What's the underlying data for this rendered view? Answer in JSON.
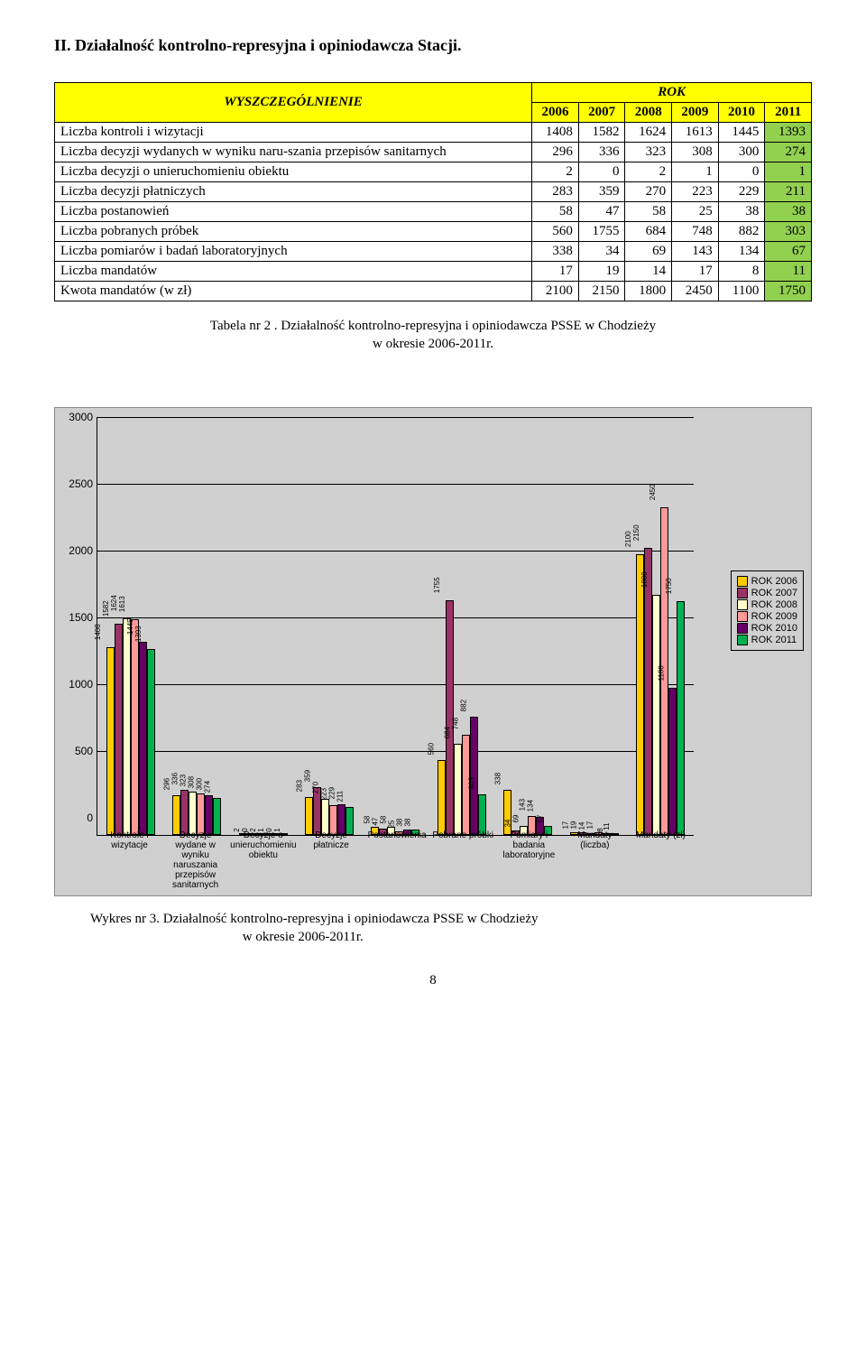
{
  "heading": "II.   Działalność kontrolno-represyjna i opiniodawcza Stacji.",
  "table": {
    "header_left": "WYSZCZEGÓLNIENIE",
    "header_rok": "ROK",
    "years": [
      "2006",
      "2007",
      "2008",
      "2009",
      "2010",
      "2011"
    ],
    "rows": [
      {
        "label": "Liczba kontroli i wizytacji",
        "vals": [
          "1408",
          "1582",
          "1624",
          "1613",
          "1445",
          "1393"
        ],
        "hl": [
          5
        ]
      },
      {
        "label": "Liczba decyzji wydanych w wyniku naru-szania przepisów sanitarnych",
        "vals": [
          "296",
          "336",
          "323",
          "308",
          "300",
          "274"
        ],
        "hl": [
          5
        ]
      },
      {
        "label": "Liczba decyzji o unieruchomieniu obiektu",
        "vals": [
          "2",
          "0",
          "2",
          "1",
          "0",
          "1"
        ],
        "hl": [
          5
        ]
      },
      {
        "label": "Liczba decyzji płatniczych",
        "vals": [
          "283",
          "359",
          "270",
          "223",
          "229",
          "211"
        ],
        "hl": [
          5
        ]
      },
      {
        "label": "Liczba postanowień",
        "vals": [
          "58",
          "47",
          "58",
          "25",
          "38",
          "38"
        ],
        "hl": [
          5
        ]
      },
      {
        "label": "Liczba pobranych próbek",
        "vals": [
          "560",
          "1755",
          "684",
          "748",
          "882",
          "303"
        ],
        "hl": [
          5
        ]
      },
      {
        "label": "Liczba pomiarów i badań laboratoryjnych",
        "vals": [
          "338",
          "34",
          "69",
          "143",
          "134",
          "67"
        ],
        "hl": [
          5
        ]
      },
      {
        "label": "Liczba mandatów",
        "vals": [
          "17",
          "19",
          "14",
          "17",
          "8",
          "11"
        ],
        "hl": [
          5
        ]
      },
      {
        "label": "Kwota mandatów (w zł)",
        "vals": [
          "2100",
          "2150",
          "1800",
          "2450",
          "1100",
          "1750"
        ],
        "hl": [
          5
        ]
      }
    ],
    "hl_color": "#92d050"
  },
  "caption1_a": "Tabela nr 2 . Działalność kontrolno-represyjna i opiniodawcza PSSE w Chodzieży",
  "caption1_b": "w okresie 2006-2011r.",
  "chart": {
    "ymax": 3000,
    "ytick_step": 500,
    "series_colors": [
      "#ffcc00",
      "#993366",
      "#ffffcc",
      "#ff9999",
      "#660066",
      "#00b050"
    ],
    "series_labels": [
      "ROK 2006",
      "ROK 2007",
      "ROK 2008",
      "ROK 2009",
      "ROK 2010",
      "ROK 2011"
    ],
    "categories": [
      "Kontrole i wizytacje",
      "Decyzje wydane w wyniku naruszania przepisów sanitarnych",
      "Decyzje o unieruchomieniu obiektu",
      "Decyzje płatnicze",
      "Postanowienia",
      "Pobrane próbki",
      "Pomiary i badania laboratoryjne",
      "Mandaty (liczba)",
      "Mandaty (zł)"
    ],
    "values": [
      [
        1408,
        1582,
        1624,
        1613,
        1445,
        1393
      ],
      [
        296,
        336,
        323,
        308,
        300,
        274
      ],
      [
        2,
        0,
        2,
        1,
        0,
        1
      ],
      [
        283,
        359,
        270,
        223,
        229,
        211
      ],
      [
        58,
        47,
        58,
        25,
        38,
        38
      ],
      [
        560,
        1755,
        684,
        748,
        882,
        303
      ],
      [
        338,
        34,
        69,
        143,
        134,
        67
      ],
      [
        17,
        19,
        14,
        17,
        8,
        11
      ],
      [
        2100,
        2150,
        1800,
        2450,
        1100,
        1750
      ]
    ]
  },
  "caption2_a": "Wykres nr 3. Działalność kontrolno-represyjna i opiniodawcza PSSE w Chodzieży",
  "caption2_b": "                                             w okresie 2006-2011r.",
  "pagenum": "8"
}
